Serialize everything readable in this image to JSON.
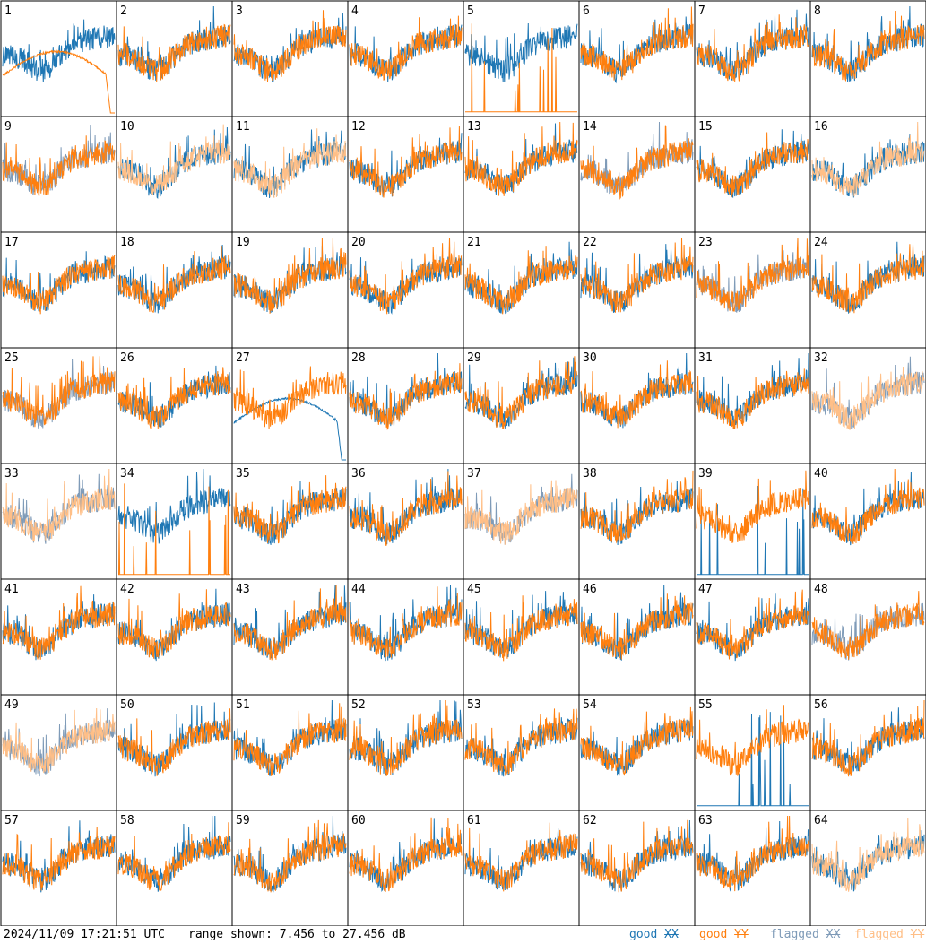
{
  "timestamp": "2024/11/09 17:21:51 UTC",
  "range_text": "range shown: 7.456 to 27.456 dB",
  "legend": {
    "good_label": "good",
    "flagged_label": "flagged",
    "xx": "XX",
    "yy": "YY"
  },
  "colors": {
    "good_xx": "#1f77b4",
    "good_yy": "#ff7f0e",
    "flagged_xx": "#7f9bb8",
    "flagged_yy": "#ffbf87"
  },
  "chart_data": {
    "type": "line",
    "layout": "8x8 small multiples",
    "ylim": [
      7.456,
      27.456
    ],
    "y_unit": "dB",
    "panels": [
      {
        "id": "1",
        "xx": "good",
        "yy": "good",
        "note": "YY smooth bandpass, drops at right"
      },
      {
        "id": "2",
        "xx": "good",
        "yy": "good"
      },
      {
        "id": "3",
        "xx": "good",
        "yy": "good"
      },
      {
        "id": "4",
        "xx": "good",
        "yy": "good"
      },
      {
        "id": "5",
        "xx": "good",
        "yy": "good",
        "note": "YY mostly at floor with spikes"
      },
      {
        "id": "6",
        "xx": "good",
        "yy": "good"
      },
      {
        "id": "7",
        "xx": "good",
        "yy": "good"
      },
      {
        "id": "8",
        "xx": "good",
        "yy": "good"
      },
      {
        "id": "9",
        "xx": "flagged",
        "yy": "good"
      },
      {
        "id": "10",
        "xx": "good",
        "yy": "flagged"
      },
      {
        "id": "11",
        "xx": "good",
        "yy": "flagged"
      },
      {
        "id": "12",
        "xx": "good",
        "yy": "good"
      },
      {
        "id": "13",
        "xx": "good",
        "yy": "good"
      },
      {
        "id": "14",
        "xx": "flagged",
        "yy": "good"
      },
      {
        "id": "15",
        "xx": "good",
        "yy": "good"
      },
      {
        "id": "16",
        "xx": "good",
        "yy": "flagged"
      },
      {
        "id": "17",
        "xx": "good",
        "yy": "good"
      },
      {
        "id": "18",
        "xx": "good",
        "yy": "good"
      },
      {
        "id": "19",
        "xx": "good",
        "yy": "good"
      },
      {
        "id": "20",
        "xx": "good",
        "yy": "good"
      },
      {
        "id": "21",
        "xx": "good",
        "yy": "good"
      },
      {
        "id": "22",
        "xx": "good",
        "yy": "good"
      },
      {
        "id": "23",
        "xx": "flagged",
        "yy": "good"
      },
      {
        "id": "24",
        "xx": "good",
        "yy": "good"
      },
      {
        "id": "25",
        "xx": "flagged",
        "yy": "good"
      },
      {
        "id": "26",
        "xx": "good",
        "yy": "good"
      },
      {
        "id": "27",
        "xx": "good",
        "yy": "good",
        "note": "XX smooth bandpass"
      },
      {
        "id": "28",
        "xx": "good",
        "yy": "good"
      },
      {
        "id": "29",
        "xx": "good",
        "yy": "good"
      },
      {
        "id": "30",
        "xx": "good",
        "yy": "good"
      },
      {
        "id": "31",
        "xx": "good",
        "yy": "good"
      },
      {
        "id": "32",
        "xx": "flagged",
        "yy": "flagged"
      },
      {
        "id": "33",
        "xx": "flagged",
        "yy": "flagged"
      },
      {
        "id": "34",
        "xx": "good",
        "yy": "good",
        "note": "YY mostly at floor with spikes"
      },
      {
        "id": "35",
        "xx": "good",
        "yy": "good"
      },
      {
        "id": "36",
        "xx": "good",
        "yy": "good"
      },
      {
        "id": "37",
        "xx": "flagged",
        "yy": "flagged"
      },
      {
        "id": "38",
        "xx": "good",
        "yy": "good"
      },
      {
        "id": "39",
        "xx": "good",
        "yy": "good",
        "note": "XX mostly at floor with spikes"
      },
      {
        "id": "40",
        "xx": "good",
        "yy": "good"
      },
      {
        "id": "41",
        "xx": "good",
        "yy": "good"
      },
      {
        "id": "42",
        "xx": "good",
        "yy": "good"
      },
      {
        "id": "43",
        "xx": "good",
        "yy": "good"
      },
      {
        "id": "44",
        "xx": "good",
        "yy": "good"
      },
      {
        "id": "45",
        "xx": "good",
        "yy": "good"
      },
      {
        "id": "46",
        "xx": "good",
        "yy": "good"
      },
      {
        "id": "47",
        "xx": "good",
        "yy": "good"
      },
      {
        "id": "48",
        "xx": "flagged",
        "yy": "good"
      },
      {
        "id": "49",
        "xx": "flagged",
        "yy": "flagged"
      },
      {
        "id": "50",
        "xx": "good",
        "yy": "good"
      },
      {
        "id": "51",
        "xx": "good",
        "yy": "good"
      },
      {
        "id": "52",
        "xx": "good",
        "yy": "good"
      },
      {
        "id": "53",
        "xx": "good",
        "yy": "good"
      },
      {
        "id": "54",
        "xx": "good",
        "yy": "good"
      },
      {
        "id": "55",
        "xx": "good",
        "yy": "good",
        "note": "XX mostly at floor with spikes"
      },
      {
        "id": "56",
        "xx": "good",
        "yy": "good"
      },
      {
        "id": "57",
        "xx": "good",
        "yy": "good"
      },
      {
        "id": "58",
        "xx": "good",
        "yy": "good"
      },
      {
        "id": "59",
        "xx": "good",
        "yy": "good"
      },
      {
        "id": "60",
        "xx": "good",
        "yy": "good"
      },
      {
        "id": "61",
        "xx": "good",
        "yy": "good"
      },
      {
        "id": "62",
        "xx": "good",
        "yy": "good"
      },
      {
        "id": "63",
        "xx": "good",
        "yy": "good"
      },
      {
        "id": "64",
        "xx": "good",
        "yy": "flagged"
      }
    ]
  }
}
